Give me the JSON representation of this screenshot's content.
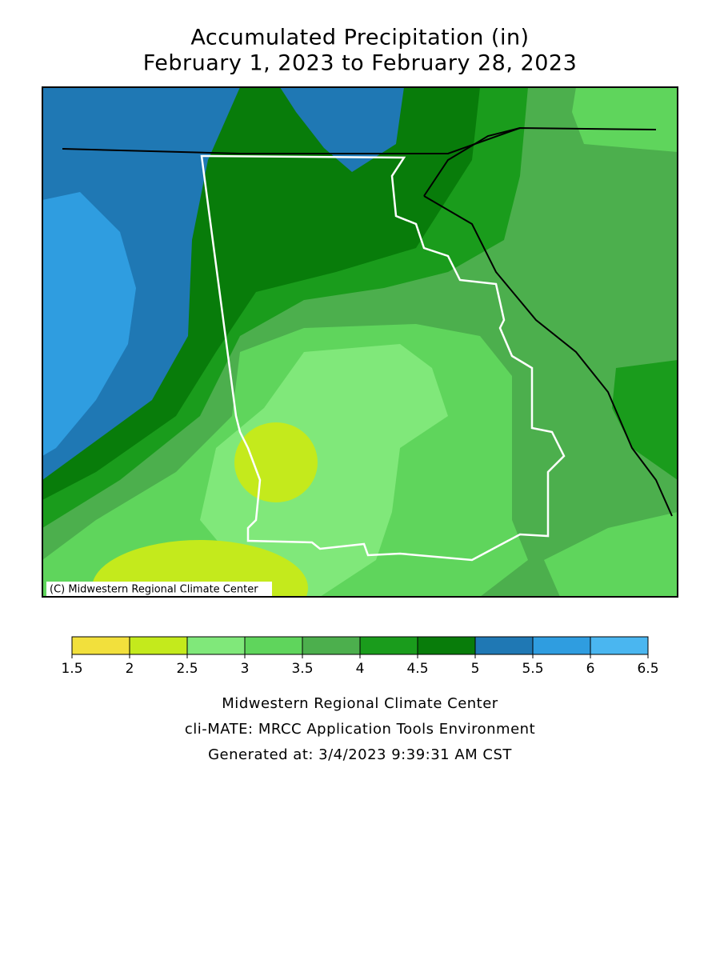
{
  "title": [
    "Accumulated Precipitation (in)",
    "February 1, 2023 to February 28, 2023"
  ],
  "copyright": "(C) Midwestern Regional Climate Center",
  "legend": {
    "bins": [
      1.5,
      2,
      2.5,
      3,
      3.5,
      4,
      4.5,
      5,
      5.5,
      6,
      6.5
    ],
    "colors": [
      "#f2e03c",
      "#c4ea1c",
      "#80e87a",
      "#5fd55c",
      "#4caf4d",
      "#1a9c1c",
      "#087c0a",
      "#1f78b4",
      "#2f9de0",
      "#4ab6f0"
    ]
  },
  "footer": [
    "Midwestern Regional Climate Center",
    "cli-MATE: MRCC Application Tools Environment",
    "Generated at: 3/4/2023 9:39:31 AM CST"
  ]
}
